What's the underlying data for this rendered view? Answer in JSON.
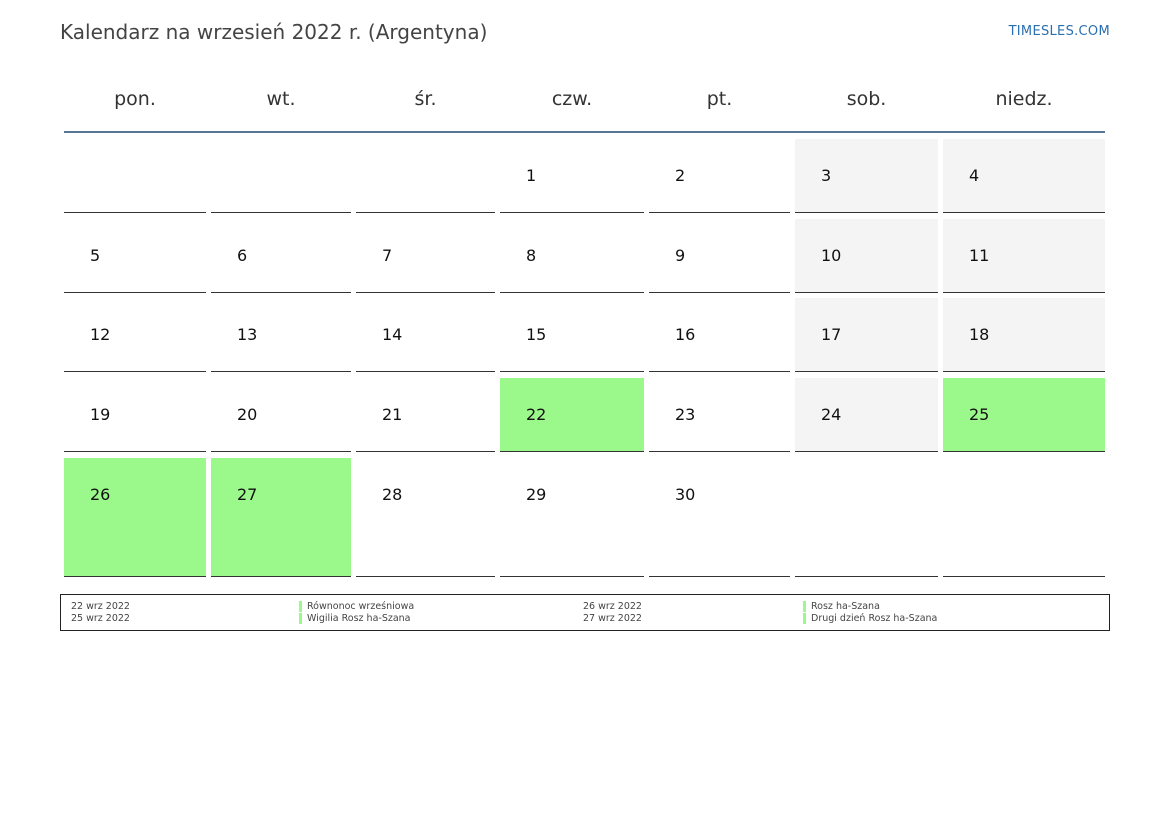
{
  "header": {
    "title": "Kalendarz na wrzesień 2022 r. (Argentyna)",
    "brand": "TIMESLES.COM"
  },
  "colors": {
    "holiday": "#9af98a",
    "weekend": "#f4f4f4",
    "header_rule": "#5a7696",
    "brand": "#2a6fb0"
  },
  "weekdays": [
    "pon.",
    "wt.",
    "śr.",
    "czw.",
    "pt.",
    "sob.",
    "niedz."
  ],
  "weeks": [
    [
      null,
      null,
      null,
      "1",
      "2",
      "3",
      "4"
    ],
    [
      "5",
      "6",
      "7",
      "8",
      "9",
      "10",
      "11"
    ],
    [
      "12",
      "13",
      "14",
      "15",
      "16",
      "17",
      "18"
    ],
    [
      "19",
      "20",
      "21",
      "22",
      "23",
      "24",
      "25"
    ],
    [
      "26",
      "27",
      "28",
      "29",
      "30",
      null,
      null
    ]
  ],
  "holidays": [
    "22",
    "25",
    "26",
    "27"
  ],
  "legend": {
    "columns": [
      [
        {
          "date": "22 wrz 2022",
          "name": "Równonoc wrześniowa"
        },
        {
          "date": "25 wrz 2022",
          "name": "Wigilia Rosz ha-Szana"
        }
      ],
      [
        {
          "date": "26 wrz 2022",
          "name": "Rosz ha-Szana"
        },
        {
          "date": "27 wrz 2022",
          "name": "Drugi dzień Rosz ha-Szana"
        }
      ]
    ]
  }
}
